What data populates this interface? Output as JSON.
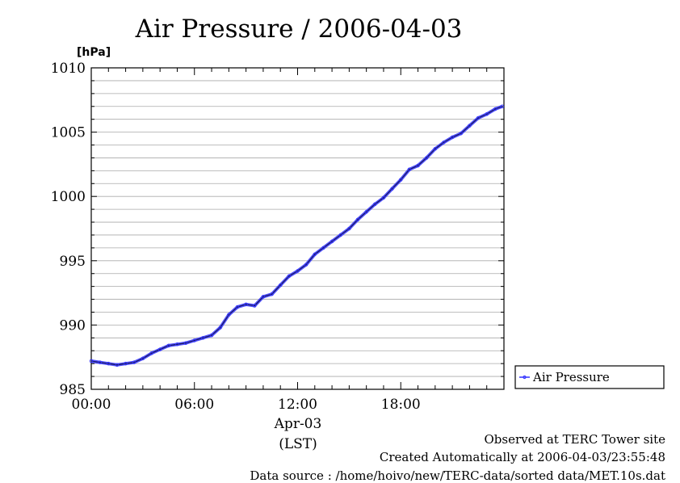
{
  "chart_data": {
    "type": "line",
    "title": "Air Pressure / 2006-04-03",
    "ylabel": "[hPa]",
    "xlabel": "Apr-03",
    "xlabel_sub": "(LST)",
    "ylim": [
      985,
      1010
    ],
    "yticks": [
      "985",
      "990",
      "995",
      "1000",
      "1005",
      "1010"
    ],
    "xticks": [
      "00:00",
      "06:00",
      "12:00",
      "18:00"
    ],
    "xlim_hours": [
      0,
      24
    ],
    "grid": true,
    "legend_position": "right-bottom",
    "series": [
      {
        "name": "Air Pressure",
        "color": "#3333ff",
        "x_hours": [
          0,
          0.5,
          1,
          1.5,
          2,
          2.5,
          3,
          3.5,
          4,
          4.5,
          5,
          5.5,
          6,
          6.5,
          7,
          7.5,
          8,
          8.5,
          9,
          9.5,
          10,
          10.5,
          11,
          11.5,
          12,
          12.5,
          13,
          13.5,
          14,
          14.5,
          15,
          15.5,
          16,
          16.5,
          17,
          17.5,
          18,
          18.5,
          19,
          19.5,
          20,
          20.5,
          21,
          21.5,
          22,
          22.5,
          23,
          23.5,
          23.9
        ],
        "values": [
          987.2,
          987.1,
          987.0,
          986.9,
          987.0,
          987.1,
          987.4,
          987.8,
          988.1,
          988.4,
          988.5,
          988.6,
          988.8,
          989.0,
          989.2,
          989.8,
          990.8,
          991.4,
          991.6,
          991.5,
          992.2,
          992.4,
          993.1,
          993.8,
          994.2,
          994.7,
          995.5,
          996.0,
          996.5,
          997.0,
          997.5,
          998.2,
          998.8,
          999.4,
          999.9,
          1000.6,
          1001.3,
          1002.1,
          1002.4,
          1003.0,
          1003.7,
          1004.2,
          1004.6,
          1004.9,
          1005.5,
          1006.1,
          1006.4,
          1006.8,
          1007.0
        ]
      }
    ]
  },
  "footer": {
    "line1": "Observed at TERC Tower site",
    "line2": "Created Automatically at 2006-04-03/23:55:48",
    "line3": "Data source : /home/hoivo/new/TERC-data/sorted  data/MET.10s.dat"
  }
}
